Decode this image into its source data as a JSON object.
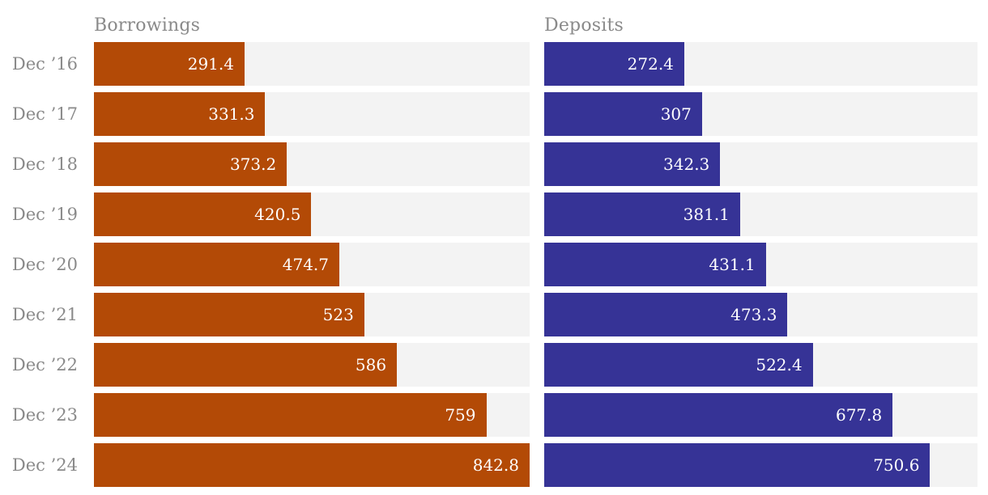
{
  "chart_data": {
    "type": "bar",
    "orientation": "horizontal",
    "title": "",
    "categories": [
      "Dec ’16",
      "Dec ’17",
      "Dec ’18",
      "Dec ’19",
      "Dec ’20",
      "Dec ’21",
      "Dec ’22",
      "Dec ’23",
      "Dec ’24"
    ],
    "series": [
      {
        "name": "Borrowings",
        "color": "#b34a06",
        "values": [
          291.4,
          331.3,
          373.2,
          420.5,
          474.7,
          523,
          586,
          759,
          842.8
        ]
      },
      {
        "name": "Deposits",
        "color": "#363396",
        "values": [
          272.4,
          307,
          342.3,
          381.1,
          431.1,
          473.3,
          522.4,
          677.8,
          750.6
        ]
      }
    ],
    "xlim": [
      0,
      842.8
    ],
    "value_labels": "inside-end",
    "grid": false,
    "legend_position": "column-titles-top",
    "track_color": "#f3f3f3",
    "label_color": "#8a8a8a",
    "value_label_color": "#ffffff"
  }
}
